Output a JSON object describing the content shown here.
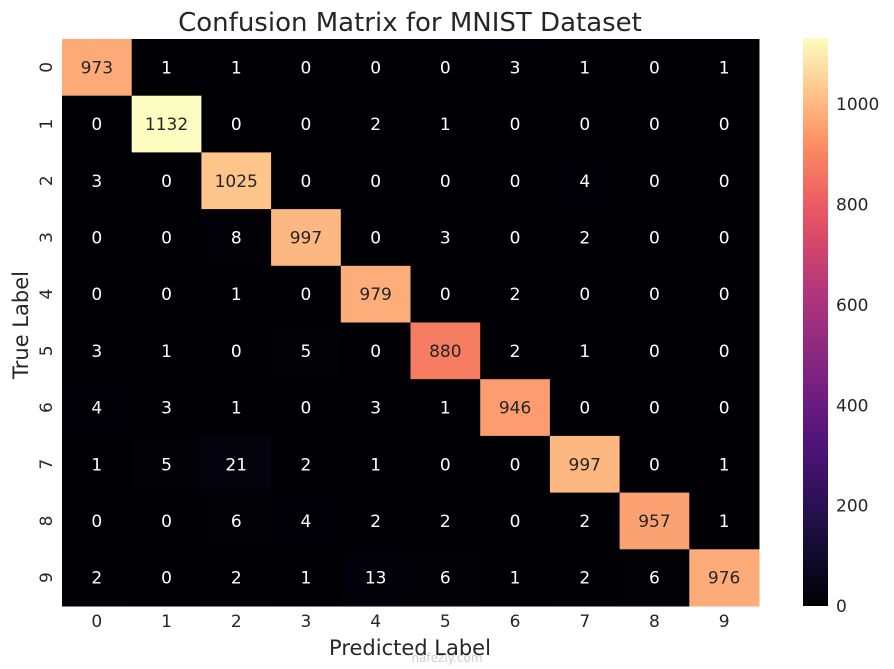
{
  "chart_data": {
    "type": "heatmap",
    "title": "Confusion Matrix for MNIST Dataset",
    "xlabel": "Predicted Label",
    "ylabel": "True Label",
    "x_categories": [
      "0",
      "1",
      "2",
      "3",
      "4",
      "5",
      "6",
      "7",
      "8",
      "9"
    ],
    "y_categories": [
      "0",
      "1",
      "2",
      "3",
      "4",
      "5",
      "6",
      "7",
      "8",
      "9"
    ],
    "values": [
      [
        973,
        1,
        1,
        0,
        0,
        0,
        3,
        1,
        0,
        1
      ],
      [
        0,
        1132,
        0,
        0,
        2,
        1,
        0,
        0,
        0,
        0
      ],
      [
        3,
        0,
        1025,
        0,
        0,
        0,
        0,
        4,
        0,
        0
      ],
      [
        0,
        0,
        8,
        997,
        0,
        3,
        0,
        2,
        0,
        0
      ],
      [
        0,
        0,
        1,
        0,
        979,
        0,
        2,
        0,
        0,
        0
      ],
      [
        3,
        1,
        0,
        5,
        0,
        880,
        2,
        1,
        0,
        0
      ],
      [
        4,
        3,
        1,
        0,
        3,
        1,
        946,
        0,
        0,
        0
      ],
      [
        1,
        5,
        21,
        2,
        1,
        0,
        0,
        997,
        0,
        1
      ],
      [
        0,
        0,
        6,
        4,
        2,
        2,
        0,
        2,
        957,
        1
      ],
      [
        2,
        0,
        2,
        1,
        13,
        6,
        1,
        2,
        6,
        976
      ]
    ],
    "colormap": "magma",
    "colorbar": {
      "range": [
        0,
        1132
      ],
      "ticks": [
        0,
        200,
        400,
        600,
        800,
        1000
      ]
    },
    "grid": false
  },
  "watermark": {
    "text": "nafezly.com"
  }
}
